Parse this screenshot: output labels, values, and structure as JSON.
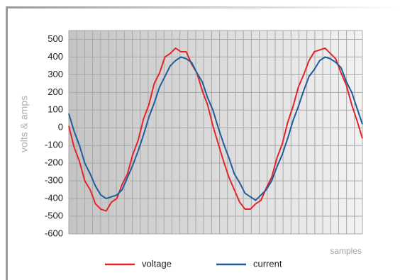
{
  "chart_data": {
    "type": "line",
    "y_label": "volts & amps",
    "x_label": "samples",
    "ylim": [
      -600,
      550
    ],
    "yticks": [
      500,
      400,
      300,
      200,
      100,
      0,
      -100,
      -200,
      -300,
      -400,
      -500,
      -600
    ],
    "grid": true,
    "series": [
      {
        "name": "voltage",
        "color": "#e3242b",
        "values": [
          10,
          -110,
          -190,
          -300,
          -350,
          -430,
          -460,
          -470,
          -420,
          -400,
          -320,
          -260,
          -150,
          -70,
          50,
          130,
          250,
          310,
          400,
          420,
          450,
          430,
          430,
          360,
          310,
          210,
          130,
          10,
          -90,
          -190,
          -280,
          -350,
          -420,
          -460,
          -460,
          -430,
          -410,
          -340,
          -280,
          -170,
          -90,
          30,
          120,
          230,
          300,
          380,
          430,
          440,
          450,
          420,
          390,
          310,
          240,
          130,
          40,
          -60
        ]
      },
      {
        "name": "current",
        "color": "#1f5d9c",
        "values": [
          80,
          -20,
          -100,
          -200,
          -260,
          -330,
          -380,
          -400,
          -390,
          -380,
          -350,
          -280,
          -210,
          -130,
          -40,
          60,
          140,
          230,
          290,
          350,
          380,
          400,
          390,
          370,
          310,
          260,
          170,
          100,
          0,
          -90,
          -170,
          -260,
          -310,
          -370,
          -390,
          -410,
          -380,
          -350,
          -300,
          -220,
          -150,
          -60,
          40,
          120,
          210,
          290,
          330,
          380,
          400,
          390,
          370,
          340,
          260,
          200,
          110,
          20
        ]
      }
    ]
  }
}
